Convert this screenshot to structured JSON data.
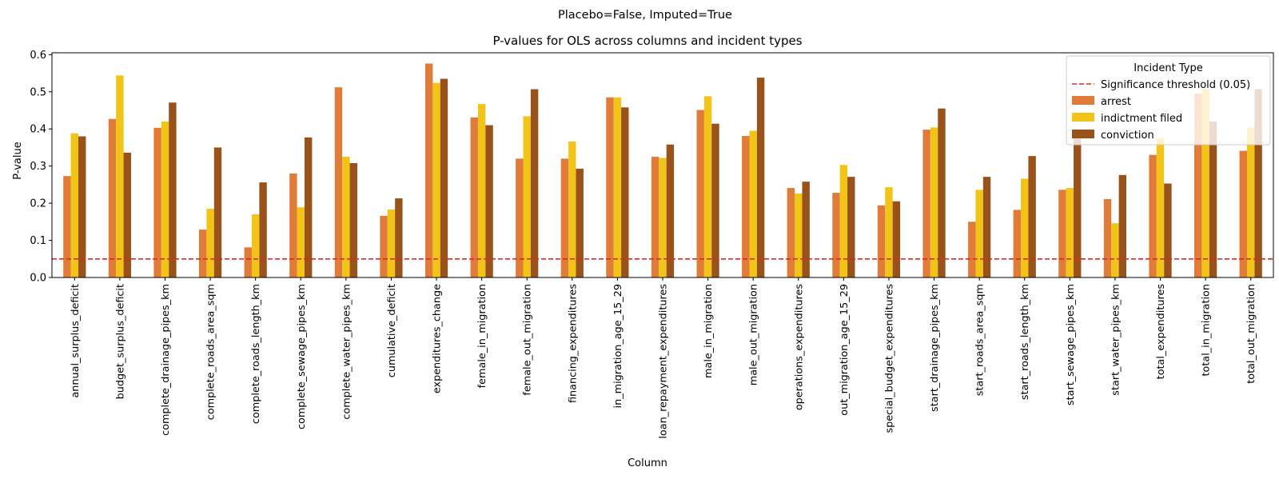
{
  "chart_data": {
    "type": "bar",
    "suptitle": "Placebo=False, Imputed=True",
    "title": "P-values for OLS across columns and incident types",
    "xlabel": "Column",
    "ylabel": "P-value",
    "ylim": [
      0,
      0.605
    ],
    "yticks": [
      0.0,
      0.1,
      0.2,
      0.3,
      0.4,
      0.5,
      0.6
    ],
    "ytick_labels": [
      "0.0",
      "0.1",
      "0.2",
      "0.3",
      "0.4",
      "0.5",
      "0.6"
    ],
    "grid": false,
    "threshold": {
      "value": 0.05,
      "label": "Significance threshold (0.05)",
      "color": "#d62d20"
    },
    "legend": {
      "title": "Incident Type",
      "placement": "top-right"
    },
    "categories": [
      "annual_surplus_deficit",
      "budget_surplus_deficit",
      "complete_drainage_pipes_km",
      "complete_roads_area_sqm",
      "complete_roads_length_km",
      "complete_sewage_pipes_km",
      "complete_water_pipes_km",
      "cumulative_deficit",
      "expenditures_change",
      "female_in_migration",
      "female_out_migration",
      "financing_expenditures",
      "in_migration_age_15_29",
      "loan_repayment_expenditures",
      "male_in_migration",
      "male_out_migration",
      "operations_expenditures",
      "out_migration_age_15_29",
      "special_budget_expenditures",
      "start_drainage_pipes_km",
      "start_roads_area_sqm",
      "start_roads_length_km",
      "start_sewage_pipes_km",
      "start_water_pipes_km",
      "total_expenditures",
      "total_in_migration",
      "total_out_migration"
    ],
    "series": [
      {
        "name": "arrest",
        "color": "#e07b39",
        "values": [
          0.273,
          0.427,
          0.403,
          0.129,
          0.081,
          0.28,
          0.512,
          0.166,
          0.576,
          0.431,
          0.32,
          0.32,
          0.485,
          0.325,
          0.451,
          0.381,
          0.241,
          0.228,
          0.194,
          0.398,
          0.15,
          0.182,
          0.236,
          0.211,
          0.33,
          0.495,
          0.341
        ]
      },
      {
        "name": "indictment filed",
        "color": "#f2c417",
        "values": [
          0.388,
          0.544,
          0.42,
          0.185,
          0.17,
          0.189,
          0.325,
          0.183,
          0.524,
          0.467,
          0.434,
          0.366,
          0.485,
          0.322,
          0.488,
          0.395,
          0.226,
          0.303,
          0.243,
          0.404,
          0.236,
          0.266,
          0.241,
          0.146,
          0.376,
          0.507,
          0.404
        ]
      },
      {
        "name": "conviction",
        "color": "#995219",
        "values": [
          0.38,
          0.336,
          0.471,
          0.35,
          0.256,
          0.377,
          0.308,
          0.213,
          0.535,
          0.41,
          0.507,
          0.293,
          0.458,
          0.358,
          0.414,
          0.538,
          0.258,
          0.271,
          0.205,
          0.455,
          0.271,
          0.327,
          0.398,
          0.276,
          0.253,
          0.42,
          0.507
        ]
      }
    ]
  }
}
